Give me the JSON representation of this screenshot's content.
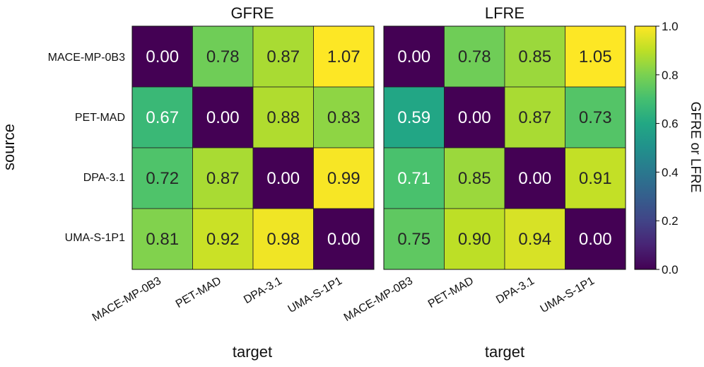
{
  "chart_data": {
    "type": "heatmap",
    "colormap": "viridis",
    "row_axis_label": "source",
    "col_axis_label": "target",
    "rows": [
      "MACE-MP-0B3",
      "PET-MAD",
      "DPA-3.1",
      "UMA-S-1P1"
    ],
    "cols": [
      "MACE-MP-0B3",
      "PET-MAD",
      "DPA-3.1",
      "UMA-S-1P1"
    ],
    "panels": [
      {
        "title": "GFRE",
        "values": [
          [
            0.0,
            0.78,
            0.87,
            1.07
          ],
          [
            0.67,
            0.0,
            0.88,
            0.83
          ],
          [
            0.72,
            0.87,
            0.0,
            0.99
          ],
          [
            0.81,
            0.92,
            0.98,
            0.0
          ]
        ],
        "labels": [
          [
            "0.00",
            "0.78",
            "0.87",
            "1.07"
          ],
          [
            "0.67",
            "0.00",
            "0.88",
            "0.83"
          ],
          [
            "0.72",
            "0.87",
            "0.00",
            "0.99"
          ],
          [
            "0.81",
            "0.92",
            "0.98",
            "0.00"
          ]
        ]
      },
      {
        "title": "LFRE",
        "values": [
          [
            0.0,
            0.78,
            0.85,
            1.05
          ],
          [
            0.59,
            0.0,
            0.87,
            0.73
          ],
          [
            0.71,
            0.85,
            0.0,
            0.91
          ],
          [
            0.75,
            0.9,
            0.94,
            0.0
          ]
        ],
        "labels": [
          [
            "0.00",
            "0.78",
            "0.85",
            "1.05"
          ],
          [
            "0.59",
            "0.00",
            "0.87",
            "0.73"
          ],
          [
            "0.71",
            "0.85",
            "0.00",
            "0.91"
          ],
          [
            "0.75",
            "0.90",
            "0.94",
            "0.00"
          ]
        ]
      }
    ],
    "colorbar": {
      "label": "GFRE or LFRE",
      "range": [
        0.0,
        1.0
      ],
      "ticks": [
        0.0,
        0.2,
        0.4,
        0.6,
        0.8,
        1.0
      ],
      "tick_labels": [
        "0.0",
        "0.2",
        "0.4",
        "0.6",
        "0.8",
        "1.0"
      ]
    }
  }
}
